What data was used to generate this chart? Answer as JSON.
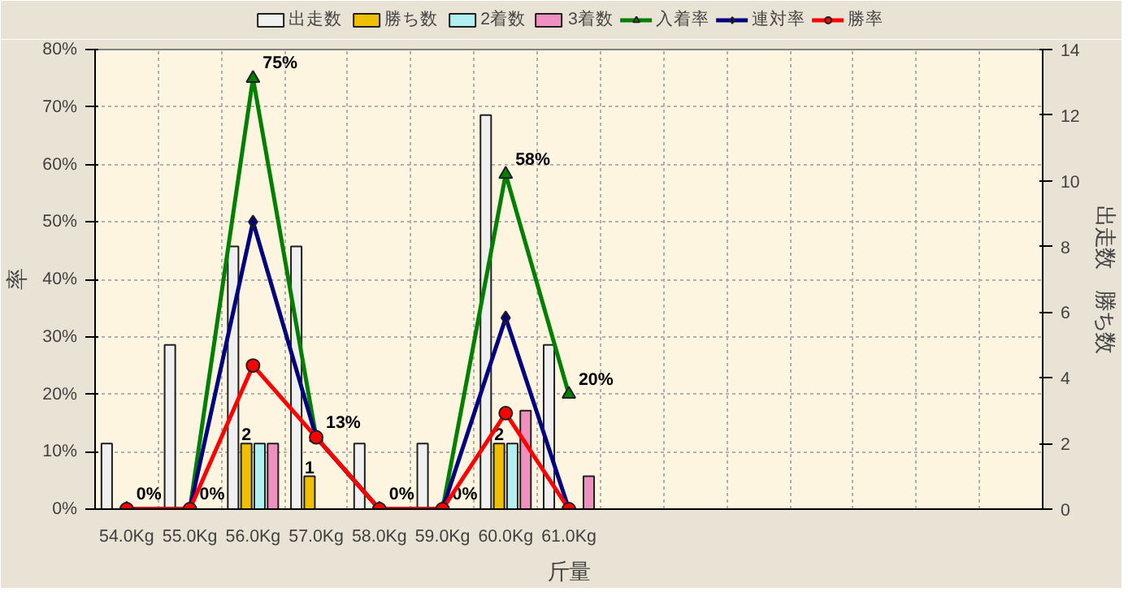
{
  "chart_data": {
    "type": "bar",
    "xlabel": "斤量",
    "ylabel": "率",
    "y2label": "出走数　勝ち数",
    "categories": [
      "54.0Kg",
      "55.0Kg",
      "56.0Kg",
      "57.0Kg",
      "58.0Kg",
      "59.0Kg",
      "60.0Kg",
      "61.0Kg",
      null,
      null,
      null,
      null,
      null,
      null,
      null
    ],
    "series": [
      {
        "name": "出走数",
        "type": "bar",
        "axis": "y2",
        "color": "#f0f0f0",
        "values": [
          2,
          5,
          8,
          8,
          2,
          2,
          12,
          5,
          null,
          null,
          null,
          null,
          null,
          null,
          null
        ]
      },
      {
        "name": "勝ち数",
        "type": "bar",
        "axis": "y2",
        "color": "#f0c000",
        "values": [
          0,
          0,
          2,
          1,
          0,
          0,
          2,
          0,
          null,
          null,
          null,
          null,
          null,
          null,
          null
        ],
        "value_labels": [
          null,
          null,
          "2",
          "1",
          null,
          null,
          "2",
          null,
          null,
          null,
          null,
          null,
          null,
          null,
          null
        ]
      },
      {
        "name": "2着数",
        "type": "bar",
        "axis": "y2",
        "color": "#b0f0f0",
        "values": [
          0,
          0,
          2,
          0,
          0,
          0,
          2,
          0,
          null,
          null,
          null,
          null,
          null,
          null,
          null
        ]
      },
      {
        "name": "3着数",
        "type": "bar",
        "axis": "y2",
        "color": "#f090c0",
        "values": [
          0,
          0,
          2,
          0,
          0,
          0,
          3,
          1,
          null,
          null,
          null,
          null,
          null,
          null,
          null
        ]
      },
      {
        "name": "入着率",
        "type": "line",
        "marker": "triangle",
        "color": "#008000",
        "values": [
          0,
          0,
          75,
          12.5,
          0,
          0,
          58.3,
          20,
          null,
          null,
          null,
          null,
          null,
          null,
          null
        ],
        "value_labels": [
          "0%",
          "0%",
          "75%",
          "13%",
          "0%",
          "0%",
          "58%",
          "20%",
          null,
          null,
          null,
          null,
          null,
          null,
          null
        ]
      },
      {
        "name": "連対率",
        "type": "line",
        "marker": "diamond",
        "color": "#000080",
        "values": [
          0,
          0,
          50,
          12.5,
          0,
          0,
          33.3,
          0,
          null,
          null,
          null,
          null,
          null,
          null,
          null
        ]
      },
      {
        "name": "勝率",
        "type": "line",
        "marker": "circle",
        "color": "#ff0000",
        "values": [
          0,
          0,
          25,
          12.5,
          0,
          0,
          16.7,
          0,
          null,
          null,
          null,
          null,
          null,
          null,
          null
        ]
      }
    ],
    "ylim": [
      0,
      80
    ],
    "yticks": [
      {
        "value": 0,
        "label": "0%"
      },
      {
        "value": 10,
        "label": "10%"
      },
      {
        "value": 20,
        "label": "20%"
      },
      {
        "value": 30,
        "label": "30%"
      },
      {
        "value": 40,
        "label": "40%"
      },
      {
        "value": 50,
        "label": "50%"
      },
      {
        "value": 60,
        "label": "60%"
      },
      {
        "value": 70,
        "label": "70%"
      },
      {
        "value": 80,
        "label": "80%"
      }
    ],
    "y2lim": [
      0,
      14
    ],
    "y2ticks": [
      0,
      2,
      4,
      6,
      8,
      10,
      12,
      14
    ],
    "grid": true,
    "legend": "top",
    "line_style": "solid"
  }
}
